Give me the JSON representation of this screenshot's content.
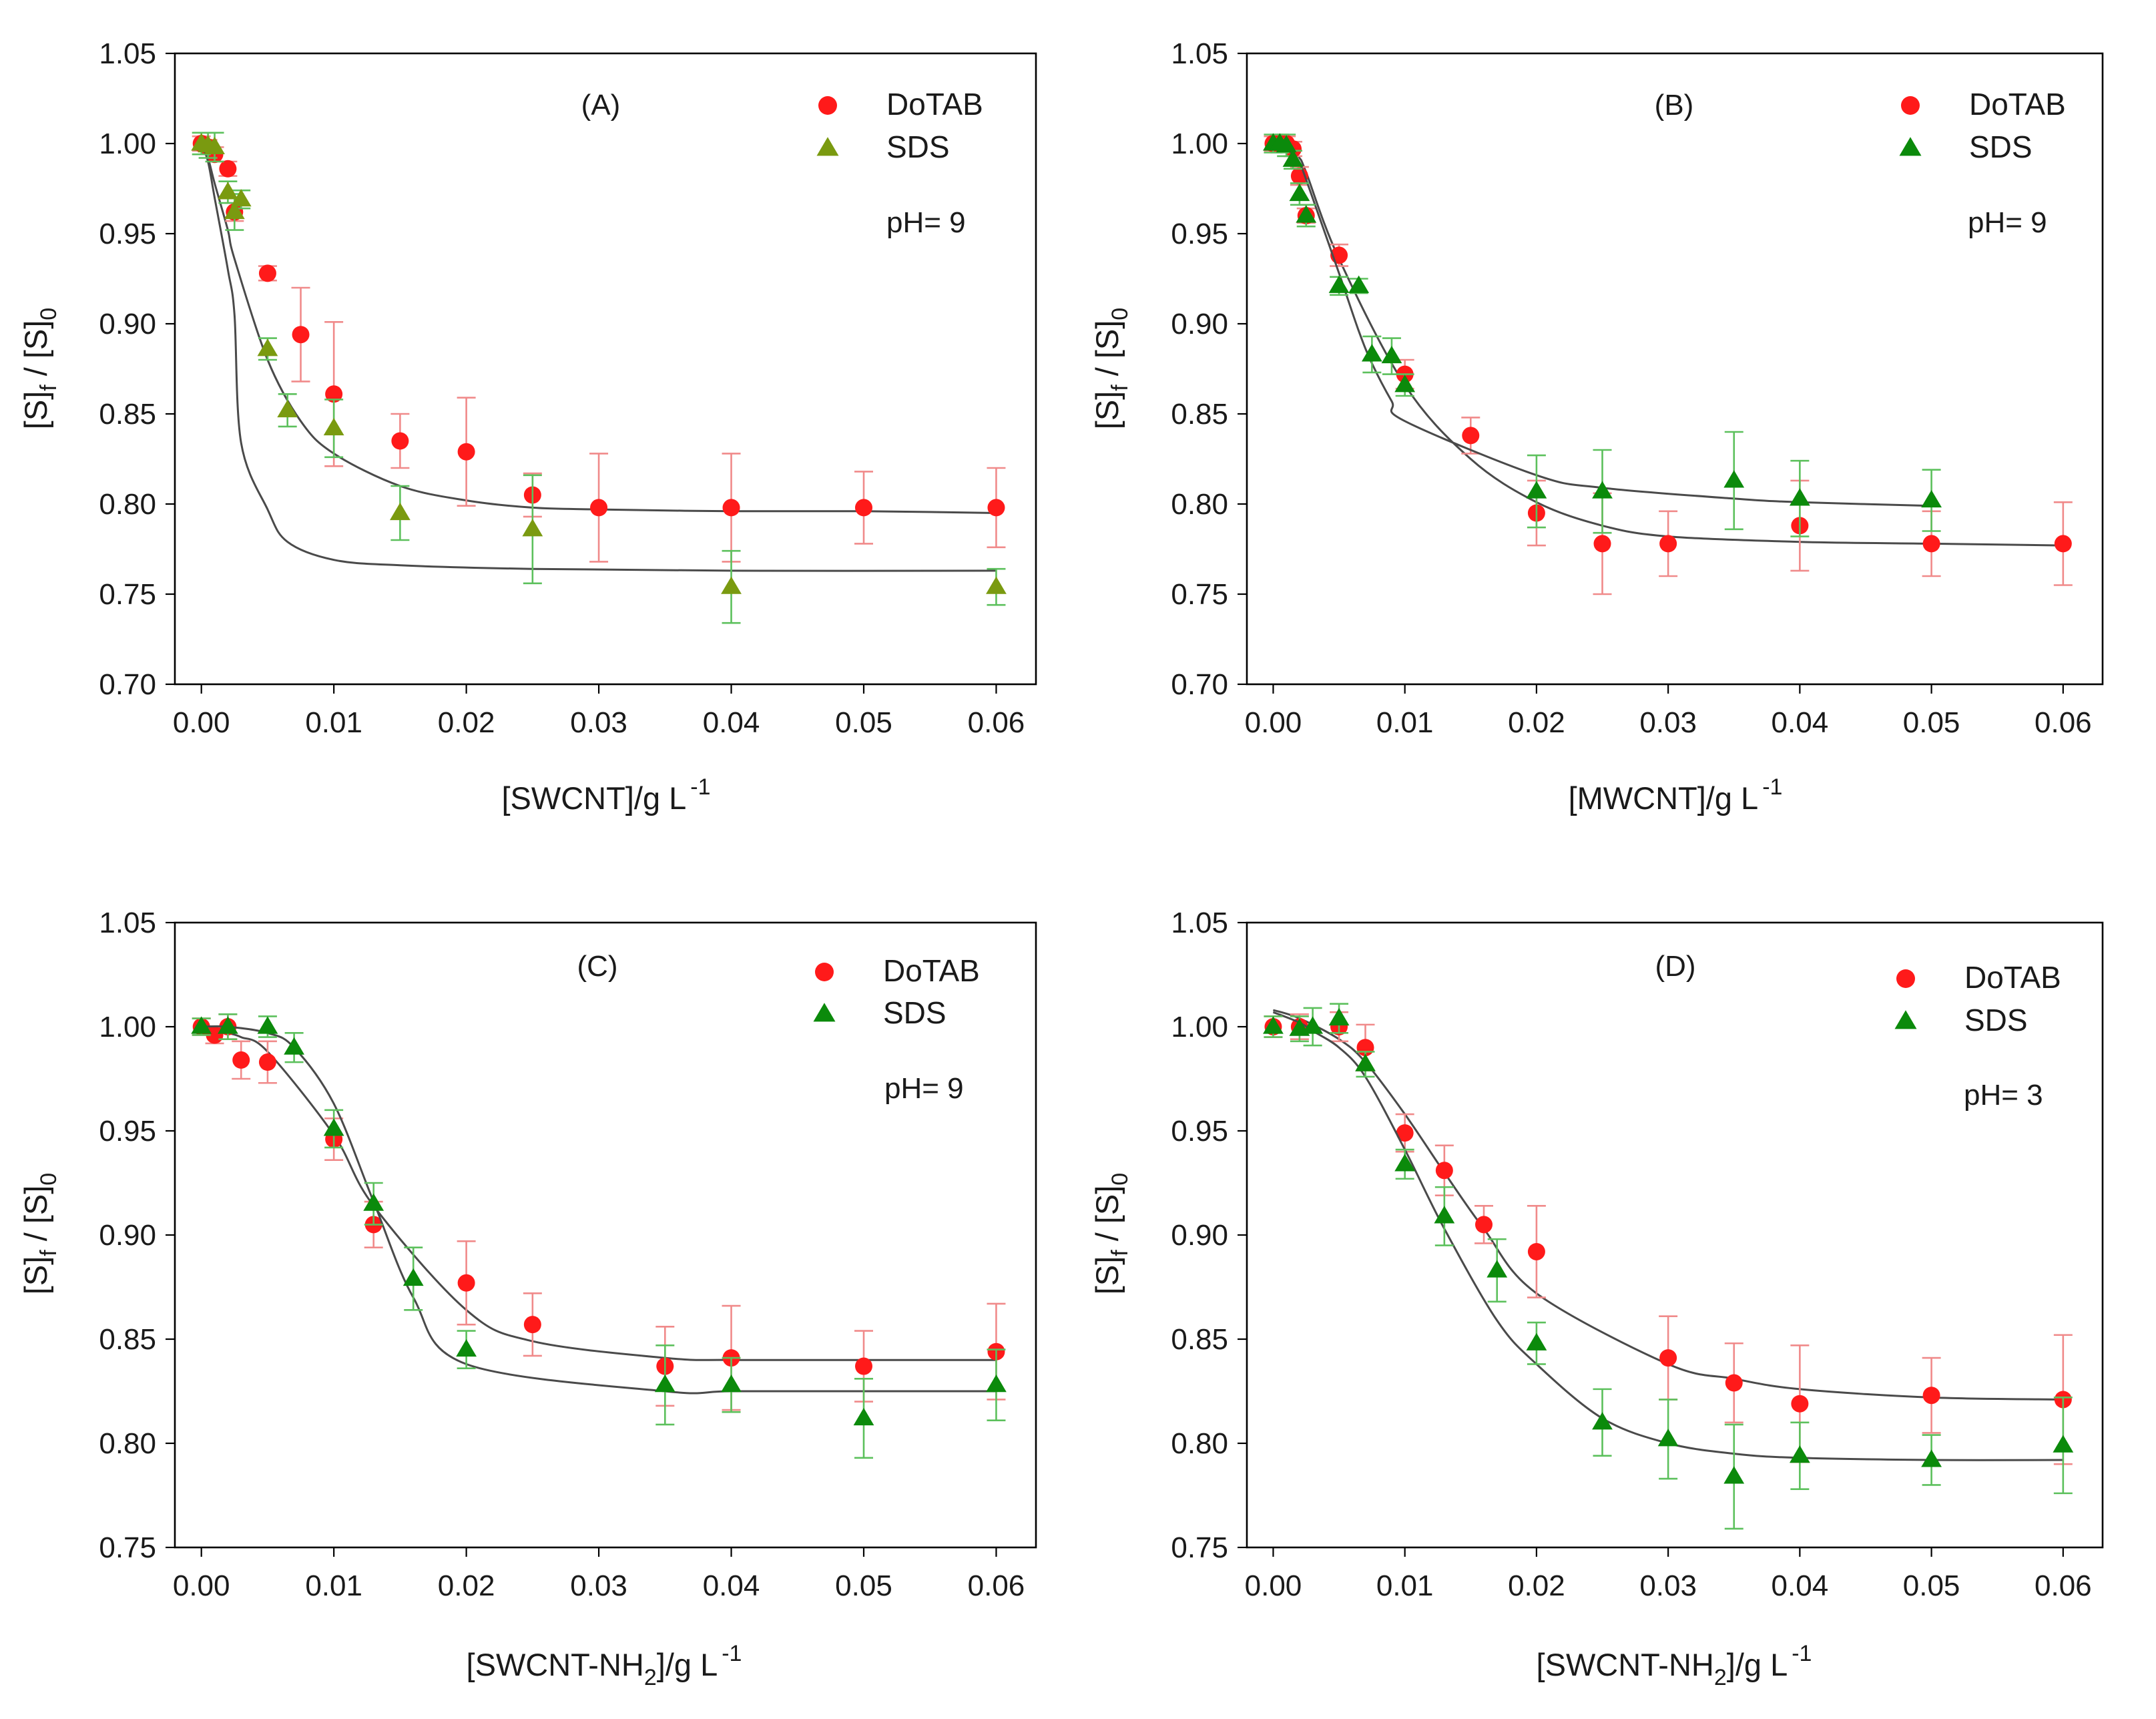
{
  "colors": {
    "dotab_marker": "#ff1a1a",
    "dotab_errorbar": "#f08a8a",
    "sds_marker": "#0b8a0b",
    "sds_marker_panel_a": "#7a9a10",
    "sds_errorbar": "#5cc05c",
    "fit_curve": "#4a4a4a",
    "axes": "#000000"
  },
  "chart_data": [
    {
      "type": "scatter",
      "panel_label": "(A)",
      "annotation": "pH= 9",
      "title": "",
      "xlabel": "[SWCNT]/g L",
      "xlabel_sup": "-1",
      "ylabel_main": "[S]",
      "ylabel_sub1": "f",
      "ylabel_mid": " / [S]",
      "ylabel_sub2": "0",
      "xlim": [
        -0.002,
        0.063
      ],
      "ylim": [
        0.7,
        1.05
      ],
      "xticks": [
        0.0,
        0.01,
        0.02,
        0.03,
        0.04,
        0.05,
        0.06
      ],
      "xtick_labels": [
        "0.00",
        "0.01",
        "0.02",
        "0.03",
        "0.04",
        "0.05",
        "0.06"
      ],
      "yticks": [
        0.7,
        0.75,
        0.8,
        0.85,
        0.9,
        0.95,
        1.0,
        1.05
      ],
      "ytick_labels": [
        "0.70",
        "0.75",
        "0.80",
        "0.85",
        "0.90",
        "0.95",
        "1.00",
        "1.05"
      ],
      "legend_position": "top-right",
      "grid": false,
      "series": [
        {
          "name": "DoTAB",
          "marker": "circle",
          "x": [
            0.0,
            0.0005,
            0.001,
            0.002,
            0.0025,
            0.005,
            0.0075,
            0.01,
            0.015,
            0.02,
            0.025,
            0.03,
            0.04,
            0.05,
            0.06
          ],
          "y": [
            1.0,
            0.998,
            0.994,
            0.986,
            0.962,
            0.928,
            0.894,
            0.861,
            0.835,
            0.829,
            0.805,
            0.798,
            0.798,
            0.798,
            0.798
          ],
          "err": [
            0.004,
            0.004,
            0.004,
            0.004,
            0.005,
            0.004,
            0.026,
            0.04,
            0.015,
            0.03,
            0.012,
            0.03,
            0.03,
            0.02,
            0.022
          ],
          "fit_y": [
            1.0,
            0.992,
            0.978,
            0.952,
            0.936,
            0.88,
            0.846,
            0.828,
            0.81,
            0.802,
            0.798,
            0.797,
            0.796,
            0.796,
            0.795
          ]
        },
        {
          "name": "SDS",
          "marker": "triangle",
          "x": [
            0.0,
            0.0005,
            0.001,
            0.002,
            0.0025,
            0.003,
            0.005,
            0.0065,
            0.01,
            0.015,
            0.025,
            0.04,
            0.06
          ],
          "y": [
            1.0,
            0.999,
            0.998,
            0.973,
            0.962,
            0.969,
            0.886,
            0.852,
            0.842,
            0.795,
            0.786,
            0.754,
            0.754
          ],
          "err": [
            0.006,
            0.007,
            0.008,
            0.006,
            0.01,
            0.005,
            0.006,
            0.009,
            0.016,
            0.015,
            0.03,
            0.02,
            0.01
          ],
          "fit_y": [
            1.0,
            0.99,
            0.97,
            0.93,
            0.905,
            0.834,
            0.797,
            0.779,
            0.769,
            0.766,
            0.764,
            0.763,
            0.763
          ]
        }
      ]
    },
    {
      "type": "scatter",
      "panel_label": "(B)",
      "annotation": "pH= 9",
      "title": "",
      "xlabel": "[MWCNT]/g L",
      "xlabel_sup": "-1",
      "ylabel_main": "[S]",
      "ylabel_sub1": "f",
      "ylabel_mid": " / [S]",
      "ylabel_sub2": "0",
      "xlim": [
        -0.002,
        0.063
      ],
      "ylim": [
        0.7,
        1.05
      ],
      "xticks": [
        0.0,
        0.01,
        0.02,
        0.03,
        0.04,
        0.05,
        0.06
      ],
      "xtick_labels": [
        "0.00",
        "0.01",
        "0.02",
        "0.03",
        "0.04",
        "0.05",
        "0.06"
      ],
      "yticks": [
        0.7,
        0.75,
        0.8,
        0.85,
        0.9,
        0.95,
        1.0,
        1.05
      ],
      "ytick_labels": [
        "0.70",
        "0.75",
        "0.80",
        "0.85",
        "0.90",
        "0.95",
        "1.00",
        "1.05"
      ],
      "legend_position": "top-right",
      "grid": false,
      "series": [
        {
          "name": "DoTAB",
          "marker": "circle",
          "x": [
            0.0,
            0.0005,
            0.001,
            0.0015,
            0.002,
            0.0025,
            0.005,
            0.01,
            0.015,
            0.02,
            0.025,
            0.03,
            0.04,
            0.05,
            0.06
          ],
          "y": [
            1.0,
            1.0,
            1.0,
            0.997,
            0.982,
            0.96,
            0.938,
            0.872,
            0.838,
            0.795,
            0.778,
            0.778,
            0.788,
            0.778,
            0.778
          ],
          "err": [
            0.004,
            0.004,
            0.004,
            0.004,
            0.005,
            0.004,
            0.006,
            0.008,
            0.01,
            0.018,
            0.028,
            0.018,
            0.025,
            0.018,
            0.023
          ],
          "fit_y": [
            1.0,
            0.999,
            0.998,
            0.996,
            0.992,
            0.984,
            0.936,
            0.866,
            0.825,
            0.801,
            0.788,
            0.782,
            0.779,
            0.778,
            0.777
          ]
        },
        {
          "name": "SDS",
          "marker": "triangle",
          "x": [
            0.0,
            0.0005,
            0.001,
            0.0015,
            0.002,
            0.0025,
            0.005,
            0.0065,
            0.0075,
            0.009,
            0.01,
            0.02,
            0.025,
            0.035,
            0.04,
            0.05
          ],
          "y": [
            1.0,
            1.0,
            0.999,
            0.991,
            0.972,
            0.96,
            0.921,
            0.921,
            0.883,
            0.882,
            0.866,
            0.807,
            0.807,
            0.813,
            0.803,
            0.802
          ],
          "err": [
            0.005,
            0.005,
            0.006,
            0.005,
            0.006,
            0.006,
            0.005,
            0.004,
            0.01,
            0.01,
            0.006,
            0.02,
            0.023,
            0.027,
            0.021,
            0.017
          ],
          "fit_y": [
            1.0,
            0.999,
            0.997,
            0.994,
            0.989,
            0.98,
            0.928,
            0.896,
            0.878,
            0.857,
            0.846,
            0.816,
            0.809,
            0.803,
            0.801,
            0.799
          ]
        }
      ]
    },
    {
      "type": "scatter",
      "panel_label": "(C)",
      "annotation": "pH= 9",
      "title": "",
      "xlabel": "[SWCNT-NH",
      "xlabel_sub": "2",
      "xlabel_tail": "]/g L",
      "xlabel_sup": "-1",
      "ylabel_main": "[S]",
      "ylabel_sub1": "f",
      "ylabel_mid": " / [S]",
      "ylabel_sub2": "0",
      "xlim": [
        -0.002,
        0.063
      ],
      "ylim": [
        0.75,
        1.05
      ],
      "xticks": [
        0.0,
        0.01,
        0.02,
        0.03,
        0.04,
        0.05,
        0.06
      ],
      "xtick_labels": [
        "0.00",
        "0.01",
        "0.02",
        "0.03",
        "0.04",
        "0.05",
        "0.06"
      ],
      "yticks": [
        0.75,
        0.8,
        0.85,
        0.9,
        0.95,
        1.0,
        1.05
      ],
      "ytick_labels": [
        "0.75",
        "0.80",
        "0.85",
        "0.90",
        "0.95",
        "1.00",
        "1.05"
      ],
      "legend_position": "top-right",
      "grid": false,
      "series": [
        {
          "name": "DoTAB",
          "marker": "circle",
          "x": [
            0.0,
            0.001,
            0.002,
            0.003,
            0.005,
            0.01,
            0.013,
            0.02,
            0.025,
            0.035,
            0.04,
            0.05,
            0.06
          ],
          "y": [
            1.0,
            0.996,
            1.0,
            0.984,
            0.983,
            0.946,
            0.905,
            0.877,
            0.857,
            0.837,
            0.841,
            0.837,
            0.844
          ],
          "err": [
            0.004,
            0.004,
            0.006,
            0.009,
            0.01,
            0.01,
            0.011,
            0.02,
            0.015,
            0.019,
            0.025,
            0.017,
            0.023
          ],
          "fit_y": [
            1.0,
            0.999,
            0.997,
            0.995,
            0.988,
            0.948,
            0.914,
            0.864,
            0.849,
            0.841,
            0.84,
            0.84,
            0.84
          ]
        },
        {
          "name": "SDS",
          "marker": "triangle",
          "x": [
            0.0,
            0.002,
            0.005,
            0.007,
            0.01,
            0.013,
            0.016,
            0.02,
            0.035,
            0.04,
            0.05,
            0.06
          ],
          "y": [
            1.0,
            1.0,
            1.0,
            0.99,
            0.951,
            0.915,
            0.879,
            0.845,
            0.828,
            0.828,
            0.812,
            0.828
          ],
          "err": [
            0.004,
            0.006,
            0.005,
            0.007,
            0.009,
            0.01,
            0.015,
            0.009,
            0.019,
            0.013,
            0.019,
            0.017
          ],
          "fit_y": [
            1.0,
            1.0,
            0.997,
            0.99,
            0.963,
            0.916,
            0.87,
            0.838,
            0.825,
            0.825,
            0.825,
            0.825
          ]
        }
      ]
    },
    {
      "type": "scatter",
      "panel_label": "(D)",
      "annotation": "pH= 3",
      "title": "",
      "xlabel": "[SWCNT-NH",
      "xlabel_sub": "2",
      "xlabel_tail": "]/g L",
      "xlabel_sup": "-1",
      "ylabel_main": "[S]",
      "ylabel_sub1": "f",
      "ylabel_mid": " / [S]",
      "ylabel_sub2": "0",
      "xlim": [
        -0.002,
        0.063
      ],
      "ylim": [
        0.75,
        1.05
      ],
      "xticks": [
        0.0,
        0.01,
        0.02,
        0.03,
        0.04,
        0.05,
        0.06
      ],
      "xtick_labels": [
        "0.00",
        "0.01",
        "0.02",
        "0.03",
        "0.04",
        "0.05",
        "0.06"
      ],
      "yticks": [
        0.75,
        0.8,
        0.85,
        0.9,
        0.95,
        1.0,
        1.05
      ],
      "ytick_labels": [
        "0.75",
        "0.80",
        "0.85",
        "0.90",
        "0.95",
        "1.00",
        "1.05"
      ],
      "legend_position": "top-right",
      "grid": false,
      "series": [
        {
          "name": "DoTAB",
          "marker": "circle",
          "x": [
            0.0,
            0.002,
            0.005,
            0.007,
            0.01,
            0.013,
            0.016,
            0.02,
            0.03,
            0.035,
            0.04,
            0.05,
            0.06
          ],
          "y": [
            1.0,
            1.0,
            1.0,
            0.99,
            0.949,
            0.931,
            0.905,
            0.892,
            0.841,
            0.829,
            0.819,
            0.823,
            0.821
          ],
          "err": [
            0.005,
            0.006,
            0.007,
            0.011,
            0.009,
            0.012,
            0.009,
            0.022,
            0.02,
            0.019,
            0.028,
            0.018,
            0.031
          ],
          "fit_y": [
            1.008,
            1.004,
            0.994,
            0.983,
            0.958,
            0.93,
            0.903,
            0.872,
            0.838,
            0.831,
            0.826,
            0.822,
            0.821
          ]
        },
        {
          "name": "SDS",
          "marker": "triangle",
          "x": [
            0.0,
            0.002,
            0.003,
            0.005,
            0.007,
            0.01,
            0.013,
            0.017,
            0.02,
            0.025,
            0.03,
            0.035,
            0.04,
            0.05,
            0.06
          ],
          "y": [
            1.0,
            0.999,
            1.0,
            1.004,
            0.982,
            0.934,
            0.909,
            0.883,
            0.848,
            0.81,
            0.802,
            0.784,
            0.794,
            0.792,
            0.799
          ],
          "err": [
            0.005,
            0.006,
            0.009,
            0.007,
            0.006,
            0.007,
            0.014,
            0.015,
            0.01,
            0.016,
            0.019,
            0.025,
            0.016,
            0.012,
            0.023
          ],
          "fit_y": [
            1.007,
            1.002,
            0.998,
            0.99,
            0.976,
            0.941,
            0.903,
            0.859,
            0.838,
            0.812,
            0.8,
            0.795,
            0.793,
            0.792,
            0.792
          ]
        }
      ]
    }
  ]
}
